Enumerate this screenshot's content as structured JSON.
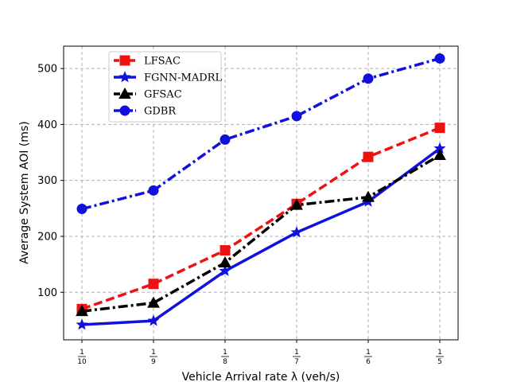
{
  "chart_data": {
    "type": "line",
    "xlabel": "Vehicle Arrival rate λ (veh/s)",
    "ylabel": "Average System AOI (ms)",
    "categories": [
      {
        "num": "1",
        "den": "10"
      },
      {
        "num": "1",
        "den": "9"
      },
      {
        "num": "1",
        "den": "8"
      },
      {
        "num": "1",
        "den": "7"
      },
      {
        "num": "1",
        "den": "6"
      },
      {
        "num": "1",
        "den": "5"
      }
    ],
    "ylim": [
      15,
      540
    ],
    "yticks": [
      100,
      200,
      300,
      400,
      500
    ],
    "grid": true,
    "legend_position": "upper-left",
    "series": [
      {
        "name": "LFSAC",
        "color": "#ee1111",
        "dash": "dashed",
        "marker": "square",
        "values": [
          70,
          115,
          175,
          258,
          342,
          394
        ]
      },
      {
        "name": "FGNN-MADRL",
        "color": "#1111dd",
        "dash": "solid",
        "marker": "star",
        "values": [
          42,
          49,
          138,
          207,
          262,
          357
        ]
      },
      {
        "name": "GFSAC",
        "color": "#000000",
        "dash": "dashdot",
        "marker": "triangle",
        "values": [
          66,
          81,
          153,
          256,
          270,
          345
        ]
      },
      {
        "name": "GDBR",
        "color": "#1111dd",
        "dash": "dashdot",
        "marker": "circle",
        "values": [
          249,
          282,
          373,
          415,
          482,
          518
        ]
      }
    ]
  }
}
